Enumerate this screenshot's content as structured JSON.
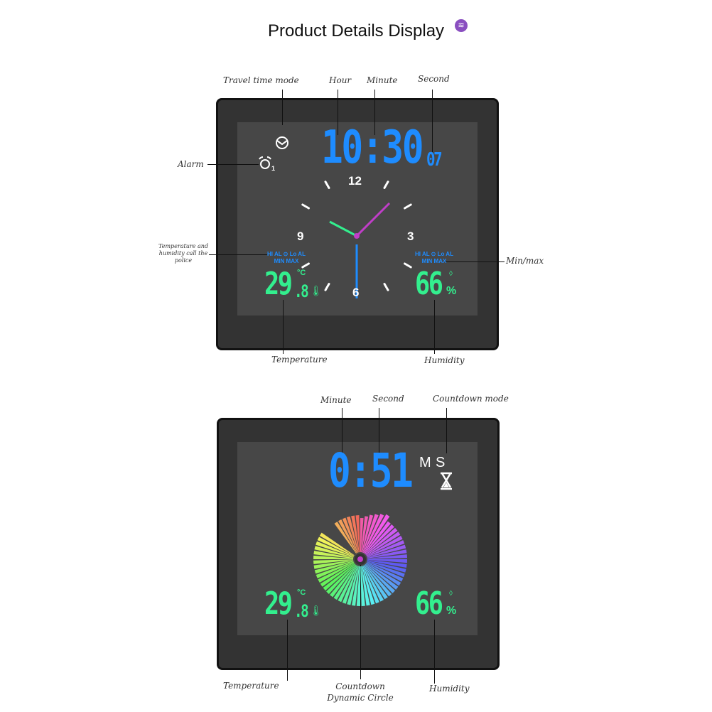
{
  "title": "Product Details Display",
  "colors": {
    "digits_blue": "#1e8cff",
    "digits_green": "#33ef8e",
    "hour_hand": "#c03ec8",
    "minute_hand": "#33ef8e",
    "second_hand": "#1e8cff",
    "frame": "#333333"
  },
  "clock1": {
    "labels": {
      "travel": "Travel time mode",
      "hour": "Hour",
      "minute": "Minute",
      "second": "Second",
      "alarm": "Alarm",
      "temp_alarm": "Temperature and humidity call the police",
      "minmax": "Min/max",
      "temperature": "Temperature",
      "humidity": "Humidity"
    },
    "time": "10:30",
    "seconds": "07",
    "dial": {
      "n12": "12",
      "n3": "3",
      "n6": "6",
      "n9": "9"
    },
    "indicator_line1": "HI AL ⊙ Lo AL",
    "indicator_line2": "MIN MAX",
    "temp_int": "29",
    "temp_dec": ".8",
    "temp_unit": "°C",
    "humidity": "66",
    "humidity_unit": "%",
    "alarm_number": "1",
    "icons": [
      "travel-clock-icon",
      "alarm-bell-icon",
      "thermometer-icon",
      "humidity-drop-icon"
    ]
  },
  "clock2": {
    "labels": {
      "minute": "Minute",
      "second": "Second",
      "countdown_mode": "Countdown mode",
      "temperature": "Temperature",
      "countdown_circle": "Countdown Dynamic Circle",
      "humidity": "Humidity"
    },
    "time": "0:51",
    "m": "M",
    "s": "S",
    "temp_int": "29",
    "temp_dec": ".8",
    "temp_unit": "°C",
    "humidity": "66",
    "humidity_unit": "%",
    "icons": [
      "hourglass-icon",
      "countdown-circle-icon"
    ]
  }
}
